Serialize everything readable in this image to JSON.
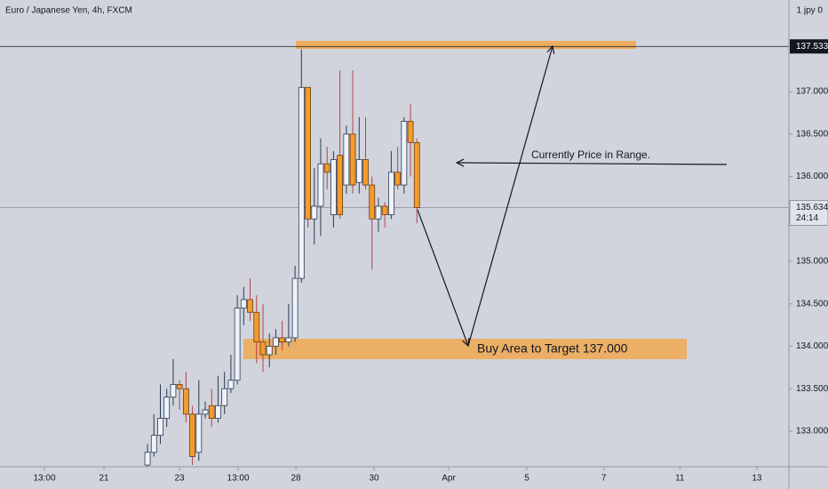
{
  "chart_data": {
    "type": "candlestick",
    "title": "Euro / Japanese Yen, 4h, FXCM",
    "header_right": "1  jpy 0",
    "x": [
      0,
      1,
      2,
      3,
      4,
      5,
      6,
      7,
      8,
      9,
      10,
      11,
      12,
      13,
      14,
      15,
      16,
      17,
      18,
      19,
      20,
      21,
      22,
      23,
      24,
      25,
      26,
      27,
      28,
      29,
      30,
      31,
      32,
      33,
      34,
      35,
      36,
      37,
      38,
      39,
      40,
      41,
      42
    ],
    "open": [
      132.6,
      132.75,
      132.95,
      133.15,
      133.4,
      133.55,
      133.5,
      133.2,
      132.75,
      133.2,
      133.3,
      133.15,
      133.3,
      133.5,
      133.6,
      134.45,
      134.55,
      134.4,
      134.05,
      133.9,
      134.0,
      134.1,
      134.05,
      134.1,
      134.8,
      137.05,
      135.5,
      135.65,
      136.15,
      135.55,
      136.25,
      135.9,
      136.5,
      135.93,
      136.2,
      135.9,
      135.5,
      135.65,
      135.55,
      136.05,
      135.9,
      136.65,
      136.4
    ],
    "high": [
      132.85,
      133.2,
      133.55,
      133.5,
      133.85,
      133.6,
      133.7,
      133.3,
      133.6,
      133.35,
      133.5,
      133.65,
      133.7,
      133.9,
      134.6,
      134.7,
      134.8,
      134.6,
      134.5,
      134.15,
      134.2,
      134.3,
      134.5,
      134.95,
      137.5,
      137.05,
      136.1,
      136.45,
      136.35,
      136.3,
      137.25,
      136.6,
      137.25,
      136.7,
      136.7,
      136.0,
      135.75,
      135.7,
      136.3,
      136.35,
      136.7,
      136.85,
      136.45
    ],
    "low": [
      132.58,
      132.7,
      132.85,
      133.05,
      133.3,
      133.25,
      133.1,
      132.6,
      132.65,
      133.15,
      133.05,
      133.1,
      133.2,
      133.45,
      133.55,
      134.25,
      134.3,
      133.8,
      133.7,
      133.75,
      133.9,
      133.95,
      134.0,
      134.05,
      134.75,
      135.4,
      135.2,
      135.3,
      135.85,
      135.4,
      135.5,
      135.8,
      135.8,
      135.8,
      135.85,
      134.9,
      135.35,
      135.4,
      135.5,
      135.85,
      135.8,
      136.0,
      135.45
    ],
    "close": [
      132.75,
      132.95,
      133.15,
      133.4,
      133.55,
      133.5,
      133.2,
      132.7,
      133.2,
      133.25,
      133.15,
      133.3,
      133.5,
      133.6,
      134.45,
      134.55,
      134.4,
      134.05,
      133.9,
      134.0,
      134.1,
      134.05,
      134.1,
      134.8,
      137.05,
      135.5,
      135.65,
      136.15,
      136.05,
      136.2,
      135.55,
      136.5,
      135.9,
      136.2,
      135.9,
      135.5,
      135.65,
      135.55,
      136.05,
      135.9,
      136.65,
      136.4,
      135.634
    ],
    "up_color": "#eef3fb",
    "down_color": "#f39c2b",
    "xlim": [
      -23,
      100
    ],
    "ylim": [
      132.58,
      138.08
    ],
    "xticks": [
      {
        "value": -16.07,
        "label": "13:00"
      },
      {
        "value": -6.79,
        "label": "21"
      },
      {
        "value": 4.99,
        "label": "23"
      },
      {
        "value": 14.13,
        "label": "13:00"
      },
      {
        "value": 23.13,
        "label": "28"
      },
      {
        "value": 35.32,
        "label": "30"
      },
      {
        "value": 46.95,
        "label": "Apr"
      },
      {
        "value": 59.14,
        "label": "5"
      },
      {
        "value": 71.14,
        "label": "7"
      },
      {
        "value": 83.0,
        "label": "11"
      },
      {
        "value": 95.0,
        "label": "13"
      }
    ],
    "yticks": [
      {
        "value": 133.0,
        "label": "133.000"
      },
      {
        "value": 133.5,
        "label": "133.500"
      },
      {
        "value": 134.0,
        "label": "134.000"
      },
      {
        "value": 134.5,
        "label": "134.500"
      },
      {
        "value": 135.0,
        "label": "135.000"
      },
      {
        "value": 136.0,
        "label": "136.000"
      },
      {
        "value": 136.5,
        "label": "136.500"
      },
      {
        "value": 137.0,
        "label": "137.000"
      }
    ],
    "level_line": 137.533,
    "last_price": 135.634,
    "countdown": "24:14",
    "annotations": [
      "Currently Price in Range.",
      "Buy Area to Target 137.000"
    ]
  }
}
